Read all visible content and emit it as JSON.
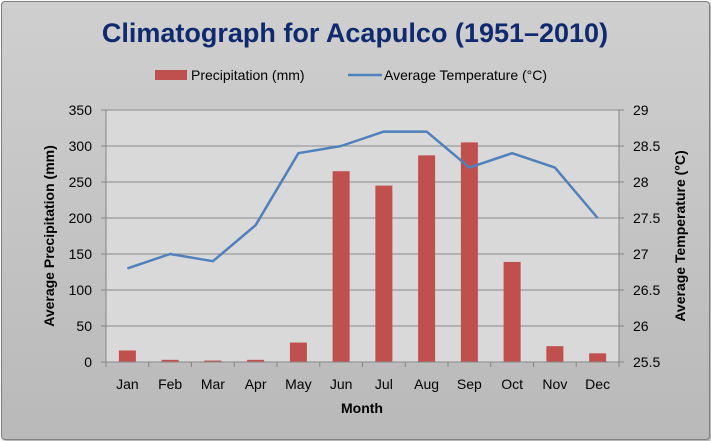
{
  "chart_data": {
    "type": "bar",
    "title": "Climatograph for Acapulco (1951–2010)",
    "xlabel": "Month",
    "ylabel": "Average Precipitation (mm)",
    "y2label": "Average Temperature (°C)",
    "categories": [
      "Jan",
      "Feb",
      "Mar",
      "Apr",
      "May",
      "Jun",
      "Jul",
      "Aug",
      "Sep",
      "Oct",
      "Nov",
      "Dec"
    ],
    "ylim": [
      0,
      350
    ],
    "y_ticks": [
      "0",
      "50",
      "100",
      "150",
      "200",
      "250",
      "300",
      "350"
    ],
    "y2lim": [
      25.5,
      29
    ],
    "y2_ticks": [
      "25.5",
      "26",
      "26.5",
      "27",
      "27.5",
      "28",
      "28.5",
      "29"
    ],
    "grid": true,
    "legend_position": "top",
    "series": [
      {
        "name": "Precipitation (mm)",
        "type": "bar",
        "axis": "left",
        "color": "#c0504d",
        "values": [
          16,
          3,
          2,
          3,
          27,
          265,
          245,
          287,
          305,
          139,
          22,
          12
        ]
      },
      {
        "name": "Average Temperature (°C)",
        "type": "line",
        "axis": "right",
        "color": "#4f81bd",
        "values": [
          26.8,
          27.0,
          26.9,
          27.4,
          28.4,
          28.5,
          28.7,
          28.7,
          28.2,
          28.4,
          28.2,
          27.5
        ]
      }
    ]
  }
}
